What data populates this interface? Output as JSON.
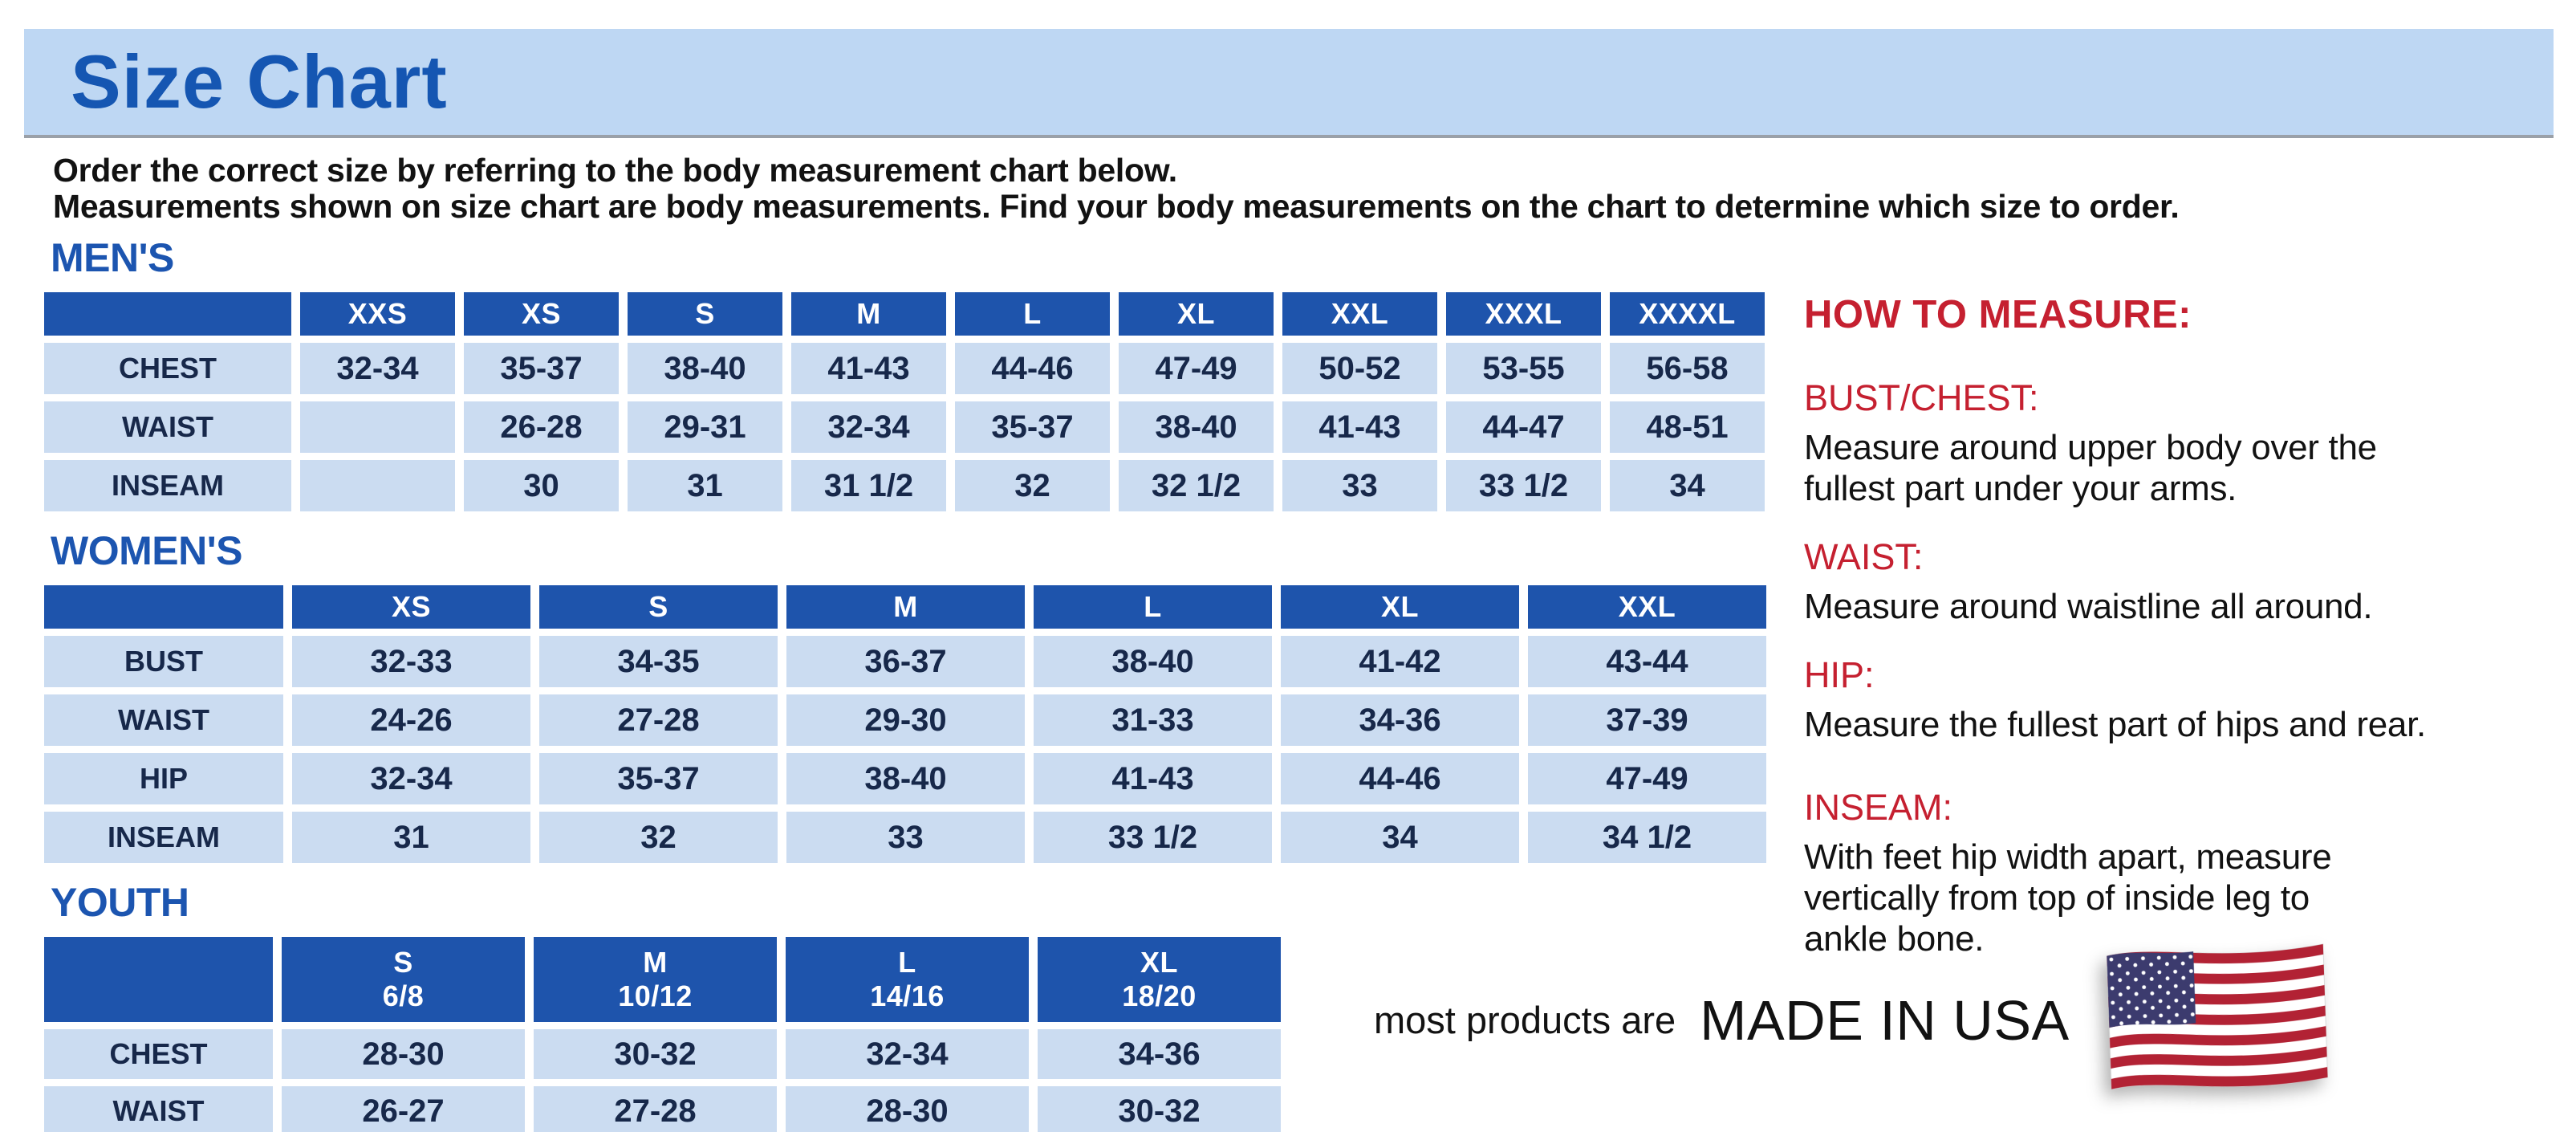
{
  "header": {
    "title": "Size Chart",
    "intro_line1": "Order the correct size by referring to the body measurement chart below.",
    "intro_line2": "Measurements shown on size chart are body measurements.  Find your body measurements on the chart to determine which size to order."
  },
  "colors": {
    "band_blue": "#bed7f3",
    "heading_blue": "#1c55b0",
    "table_header_blue": "#1e54ac",
    "cell_blue": "#cbdcf1",
    "red": "#c52030",
    "flag_red": "#b22234",
    "flag_blue": "#3c3b6e"
  },
  "tables": {
    "mens": {
      "heading": "MEN'S",
      "columns": [
        "XXS",
        "XS",
        "S",
        "M",
        "L",
        "XL",
        "XXL",
        "XXXL",
        "XXXXL"
      ],
      "rows": [
        {
          "label": "CHEST",
          "values": [
            "32-34",
            "35-37",
            "38-40",
            "41-43",
            "44-46",
            "47-49",
            "50-52",
            "53-55",
            "56-58"
          ]
        },
        {
          "label": "WAIST",
          "values": [
            "",
            "26-28",
            "29-31",
            "32-34",
            "35-37",
            "38-40",
            "41-43",
            "44-47",
            "48-51"
          ]
        },
        {
          "label": "INSEAM",
          "values": [
            "",
            "30",
            "31",
            "31 1/2",
            "32",
            "32 1/2",
            "33",
            "33 1/2",
            "34"
          ]
        }
      ]
    },
    "womens": {
      "heading": "WOMEN'S",
      "columns": [
        "XS",
        "S",
        "M",
        "L",
        "XL",
        "XXL"
      ],
      "rows": [
        {
          "label": "BUST",
          "values": [
            "32-33",
            "34-35",
            "36-37",
            "38-40",
            "41-42",
            "43-44"
          ]
        },
        {
          "label": "WAIST",
          "values": [
            "24-26",
            "27-28",
            "29-30",
            "31-33",
            "34-36",
            "37-39"
          ]
        },
        {
          "label": "HIP",
          "values": [
            "32-34",
            "35-37",
            "38-40",
            "41-43",
            "44-46",
            "47-49"
          ]
        },
        {
          "label": "INSEAM",
          "values": [
            "31",
            "32",
            "33",
            "33 1/2",
            "34",
            "34 1/2"
          ]
        }
      ]
    },
    "youth": {
      "heading": "YOUTH",
      "columns": [
        {
          "size": "S",
          "range": "6/8"
        },
        {
          "size": "M",
          "range": "10/12"
        },
        {
          "size": "L",
          "range": "14/16"
        },
        {
          "size": "XL",
          "range": "18/20"
        }
      ],
      "rows": [
        {
          "label": "CHEST",
          "values": [
            "28-30",
            "30-32",
            "32-34",
            "34-36"
          ]
        },
        {
          "label": "WAIST",
          "values": [
            "26-27",
            "27-28",
            "28-30",
            "30-32"
          ]
        }
      ]
    }
  },
  "how_to_measure": {
    "heading": "HOW TO MEASURE:",
    "sections": [
      {
        "label": "BUST/CHEST:",
        "text": "Measure around upper body over the\nfullest part under your arms."
      },
      {
        "label": "WAIST:",
        "text": "Measure around waistline all around."
      },
      {
        "label": "HIP:",
        "text": "Measure the fullest part of hips and rear."
      },
      {
        "label": "INSEAM:",
        "text": "With feet hip width apart, measure\nvertically from top of inside leg to\nankle bone."
      }
    ]
  },
  "footer": {
    "prefix": "most products are",
    "made_in": "MADE IN USA",
    "flag_icon": "us-flag"
  }
}
